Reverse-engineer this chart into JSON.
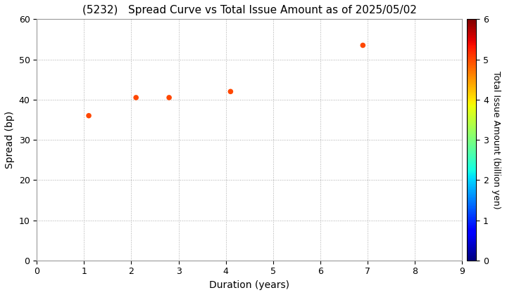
{
  "title": "(5232)   Spread Curve vs Total Issue Amount as of 2025/05/02",
  "xlabel": "Duration (years)",
  "ylabel": "Spread (bp)",
  "colorbar_label": "Total Issue Amount (billion yen)",
  "points": [
    {
      "duration": 1.1,
      "spread": 36.0,
      "amount": 5.0
    },
    {
      "duration": 2.1,
      "spread": 40.5,
      "amount": 5.0
    },
    {
      "duration": 2.8,
      "spread": 40.5,
      "amount": 5.0
    },
    {
      "duration": 4.1,
      "spread": 42.0,
      "amount": 5.0
    },
    {
      "duration": 6.9,
      "spread": 53.5,
      "amount": 5.0
    }
  ],
  "xlim": [
    0,
    9
  ],
  "ylim": [
    0,
    60
  ],
  "xticks": [
    0,
    1,
    2,
    3,
    4,
    5,
    6,
    7,
    8,
    9
  ],
  "yticks": [
    0,
    10,
    20,
    30,
    40,
    50,
    60
  ],
  "colorbar_min": 0,
  "colorbar_max": 6,
  "colorbar_ticks": [
    0,
    1,
    2,
    3,
    4,
    5,
    6
  ],
  "marker_size": 30,
  "background_color": "#ffffff",
  "grid_color": "#aaaaaa",
  "title_fontsize": 11,
  "axis_label_fontsize": 10,
  "tick_fontsize": 9,
  "colorbar_label_fontsize": 9
}
